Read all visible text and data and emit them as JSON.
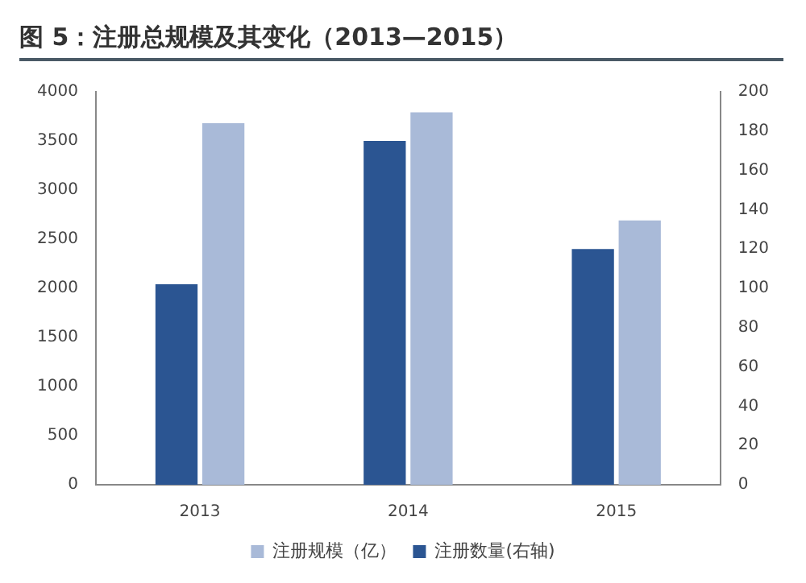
{
  "chart_data": {
    "type": "bar",
    "title": "图 5：注册总规模及其变化（2013—2015）",
    "categories": [
      "2013",
      "2014",
      "2015"
    ],
    "series": [
      {
        "name": "注册规模（亿）",
        "color": "#a9bad8",
        "values": [
          3680,
          3790,
          2690
        ]
      },
      {
        "name": "注册数量(右轴)",
        "color": "#2b5592",
        "values": [
          102,
          175,
          120
        ],
        "axis": "y2"
      }
    ],
    "ylim": [
      0,
      4000
    ],
    "yticks": [
      0,
      500,
      1000,
      1500,
      2000,
      2500,
      3000,
      3500,
      4000
    ],
    "y2lim": [
      0,
      200
    ],
    "y2ticks": [
      0,
      20,
      40,
      60,
      80,
      100,
      120,
      140,
      160,
      180,
      200
    ],
    "grid": false,
    "legend": "bottom"
  }
}
